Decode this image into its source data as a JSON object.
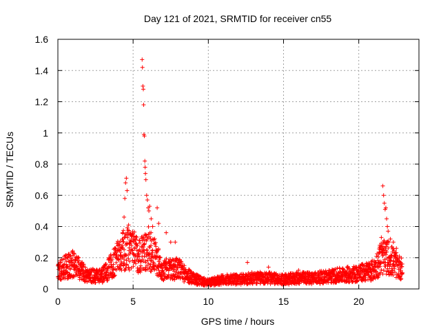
{
  "chart_data": {
    "type": "scatter",
    "title": "Day 121 of 2021, SRMTID for receiver cn55",
    "xlabel": "GPS time / hours",
    "ylabel": "SRMTID / TECUs",
    "xlim": [
      0,
      24
    ],
    "ylim": [
      0,
      1.6
    ],
    "grid": true,
    "marker": "+",
    "color": "#ff0000",
    "xticks": [
      0,
      5,
      10,
      15,
      20
    ],
    "xtick_labels": [
      "0",
      "5",
      "10",
      "15",
      "20"
    ],
    "yticks": [
      0,
      0.2,
      0.4,
      0.6,
      0.8,
      1,
      1.2,
      1.4,
      1.6
    ],
    "ytick_labels": [
      "0",
      "0.2",
      "0.4",
      "0.6",
      "0.8",
      "1",
      "1.2",
      "1.4",
      "1.6"
    ],
    "baseline_profile": [
      [
        0.0,
        0.12
      ],
      [
        0.5,
        0.14
      ],
      [
        1.0,
        0.16
      ],
      [
        1.5,
        0.12
      ],
      [
        2.0,
        0.09
      ],
      [
        2.5,
        0.08
      ],
      [
        3.0,
        0.09
      ],
      [
        3.5,
        0.14
      ],
      [
        4.0,
        0.2
      ],
      [
        4.5,
        0.26
      ],
      [
        5.0,
        0.24
      ],
      [
        5.5,
        0.22
      ],
      [
        6.0,
        0.26
      ],
      [
        6.5,
        0.2
      ],
      [
        7.0,
        0.12
      ],
      [
        7.5,
        0.13
      ],
      [
        8.0,
        0.13
      ],
      [
        8.5,
        0.09
      ],
      [
        9.0,
        0.07
      ],
      [
        9.5,
        0.05
      ],
      [
        10.0,
        0.04
      ],
      [
        11.0,
        0.06
      ],
      [
        12.0,
        0.06
      ],
      [
        13.0,
        0.07
      ],
      [
        14.0,
        0.07
      ],
      [
        15.0,
        0.06
      ],
      [
        16.0,
        0.07
      ],
      [
        17.0,
        0.07
      ],
      [
        18.0,
        0.08
      ],
      [
        19.0,
        0.09
      ],
      [
        20.0,
        0.1
      ],
      [
        21.0,
        0.12
      ],
      [
        21.5,
        0.2
      ],
      [
        22.0,
        0.2
      ],
      [
        22.5,
        0.15
      ],
      [
        22.9,
        0.13
      ]
    ],
    "peaks": [
      {
        "x": 4.3,
        "y": 0.36
      },
      {
        "x": 4.4,
        "y": 0.46
      },
      {
        "x": 4.45,
        "y": 0.58
      },
      {
        "x": 4.5,
        "y": 0.68
      },
      {
        "x": 4.55,
        "y": 0.71
      },
      {
        "x": 4.6,
        "y": 0.63
      },
      {
        "x": 4.7,
        "y": 0.41
      },
      {
        "x": 4.8,
        "y": 0.35
      },
      {
        "x": 5.0,
        "y": 0.32
      },
      {
        "x": 5.6,
        "y": 1.47
      },
      {
        "x": 5.62,
        "y": 1.42
      },
      {
        "x": 5.65,
        "y": 1.3
      },
      {
        "x": 5.68,
        "y": 1.28
      },
      {
        "x": 5.7,
        "y": 1.18
      },
      {
        "x": 5.72,
        "y": 0.99
      },
      {
        "x": 5.75,
        "y": 0.98
      },
      {
        "x": 5.78,
        "y": 0.82
      },
      {
        "x": 5.8,
        "y": 0.78
      },
      {
        "x": 5.82,
        "y": 0.74
      },
      {
        "x": 5.85,
        "y": 0.7
      },
      {
        "x": 5.9,
        "y": 0.6
      },
      {
        "x": 5.95,
        "y": 0.57
      },
      {
        "x": 6.0,
        "y": 0.52
      },
      {
        "x": 6.05,
        "y": 0.5
      },
      {
        "x": 6.1,
        "y": 0.53
      },
      {
        "x": 6.2,
        "y": 0.45
      },
      {
        "x": 6.3,
        "y": 0.4
      },
      {
        "x": 6.6,
        "y": 0.52
      },
      {
        "x": 6.7,
        "y": 0.42
      },
      {
        "x": 7.2,
        "y": 0.36
      },
      {
        "x": 7.5,
        "y": 0.3
      },
      {
        "x": 7.8,
        "y": 0.3
      },
      {
        "x": 12.6,
        "y": 0.17
      },
      {
        "x": 14.0,
        "y": 0.14
      },
      {
        "x": 16.0,
        "y": 0.12
      },
      {
        "x": 21.6,
        "y": 0.66
      },
      {
        "x": 21.65,
        "y": 0.6
      },
      {
        "x": 21.7,
        "y": 0.55
      },
      {
        "x": 21.75,
        "y": 0.51
      },
      {
        "x": 21.8,
        "y": 0.52
      },
      {
        "x": 21.85,
        "y": 0.45
      },
      {
        "x": 21.9,
        "y": 0.4
      },
      {
        "x": 21.95,
        "y": 0.37
      },
      {
        "x": 21.5,
        "y": 0.33
      },
      {
        "x": 21.4,
        "y": 0.28
      },
      {
        "x": 22.1,
        "y": 0.32
      },
      {
        "x": 22.3,
        "y": 0.3
      },
      {
        "x": 22.5,
        "y": 0.26
      },
      {
        "x": 22.7,
        "y": 0.2
      }
    ]
  }
}
